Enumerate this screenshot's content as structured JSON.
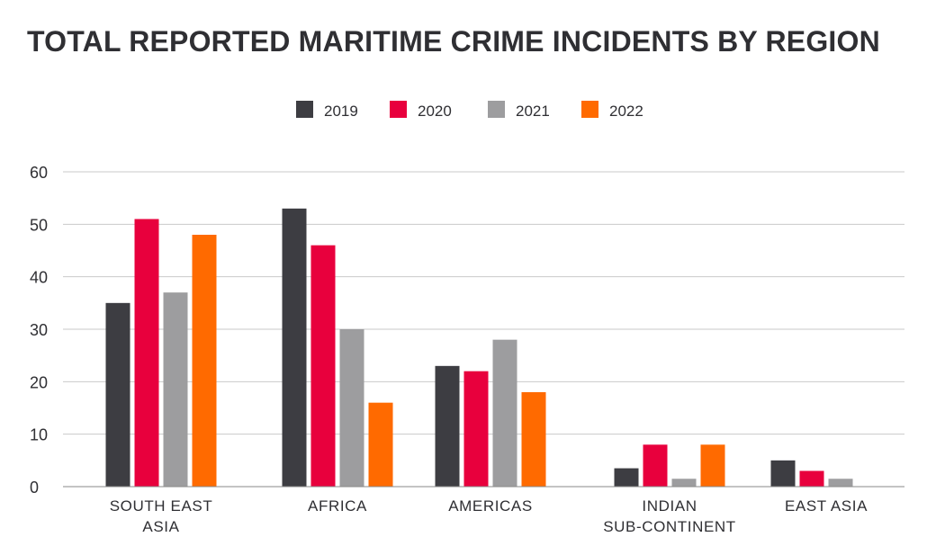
{
  "chart_data": {
    "type": "bar",
    "title": "TOTAL REPORTED MARITIME CRIME INCIDENTS BY REGION",
    "xlabel": "",
    "ylabel": "",
    "ylim": [
      0,
      60
    ],
    "yticks": [
      0,
      10,
      20,
      30,
      40,
      50,
      60
    ],
    "grid": true,
    "legend_position": "top-center",
    "categories": [
      [
        "SOUTH EAST",
        "ASIA"
      ],
      [
        "AFRICA"
      ],
      [
        "AMERICAS"
      ],
      [
        "INDIAN",
        "SUB-CONTINENT"
      ],
      [
        "EAST ASIA"
      ]
    ],
    "series": [
      {
        "name": "2019",
        "color": "#3d3d42",
        "values": [
          35,
          53,
          23,
          3.5,
          5
        ]
      },
      {
        "name": "2020",
        "color": "#e8003d",
        "values": [
          51,
          46,
          22,
          8,
          3
        ]
      },
      {
        "name": "2021",
        "color": "#9d9d9f",
        "values": [
          37,
          30,
          28,
          1.5,
          1.5
        ]
      },
      {
        "name": "2022",
        "color": "#ff6a00",
        "values": [
          48,
          16,
          18,
          8,
          0
        ]
      }
    ]
  }
}
